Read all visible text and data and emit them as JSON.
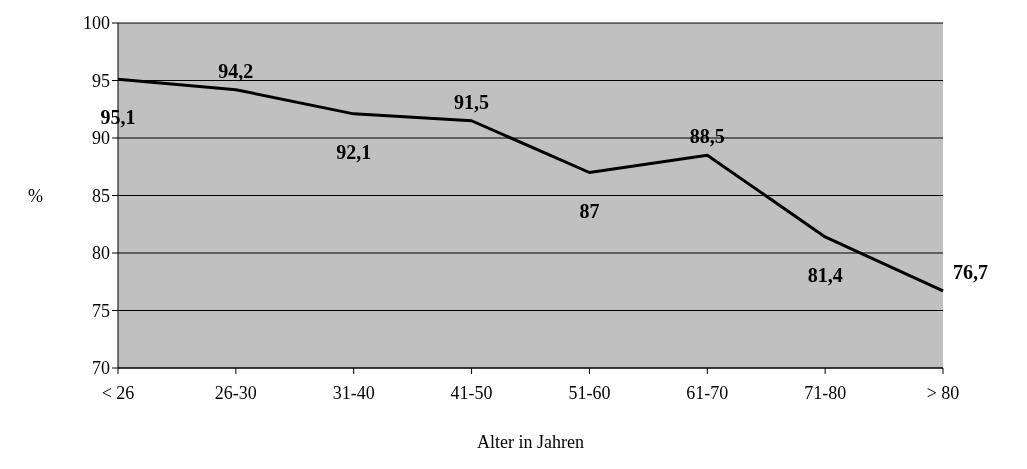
{
  "chart_data": {
    "type": "line",
    "xlabel": "Alter in Jahren",
    "ylabel": "%",
    "categories": [
      "< 26",
      "26-30",
      "31-40",
      "41-50",
      "51-60",
      "61-70",
      "71-80",
      "> 80"
    ],
    "series": [
      {
        "color": "#000000",
        "values": [
          95.1,
          94.2,
          92.1,
          91.5,
          87,
          88.5,
          81.4,
          76.7
        ],
        "value_labels": [
          "95,1",
          "94,2",
          "92,1",
          "91,5",
          "87",
          "88,5",
          "81,4",
          "76,7"
        ]
      }
    ],
    "ylim": [
      70,
      100
    ],
    "yticks": [
      70,
      75,
      80,
      85,
      90,
      95,
      100
    ],
    "grid": "y",
    "marker": "none",
    "line_style": "solid"
  }
}
